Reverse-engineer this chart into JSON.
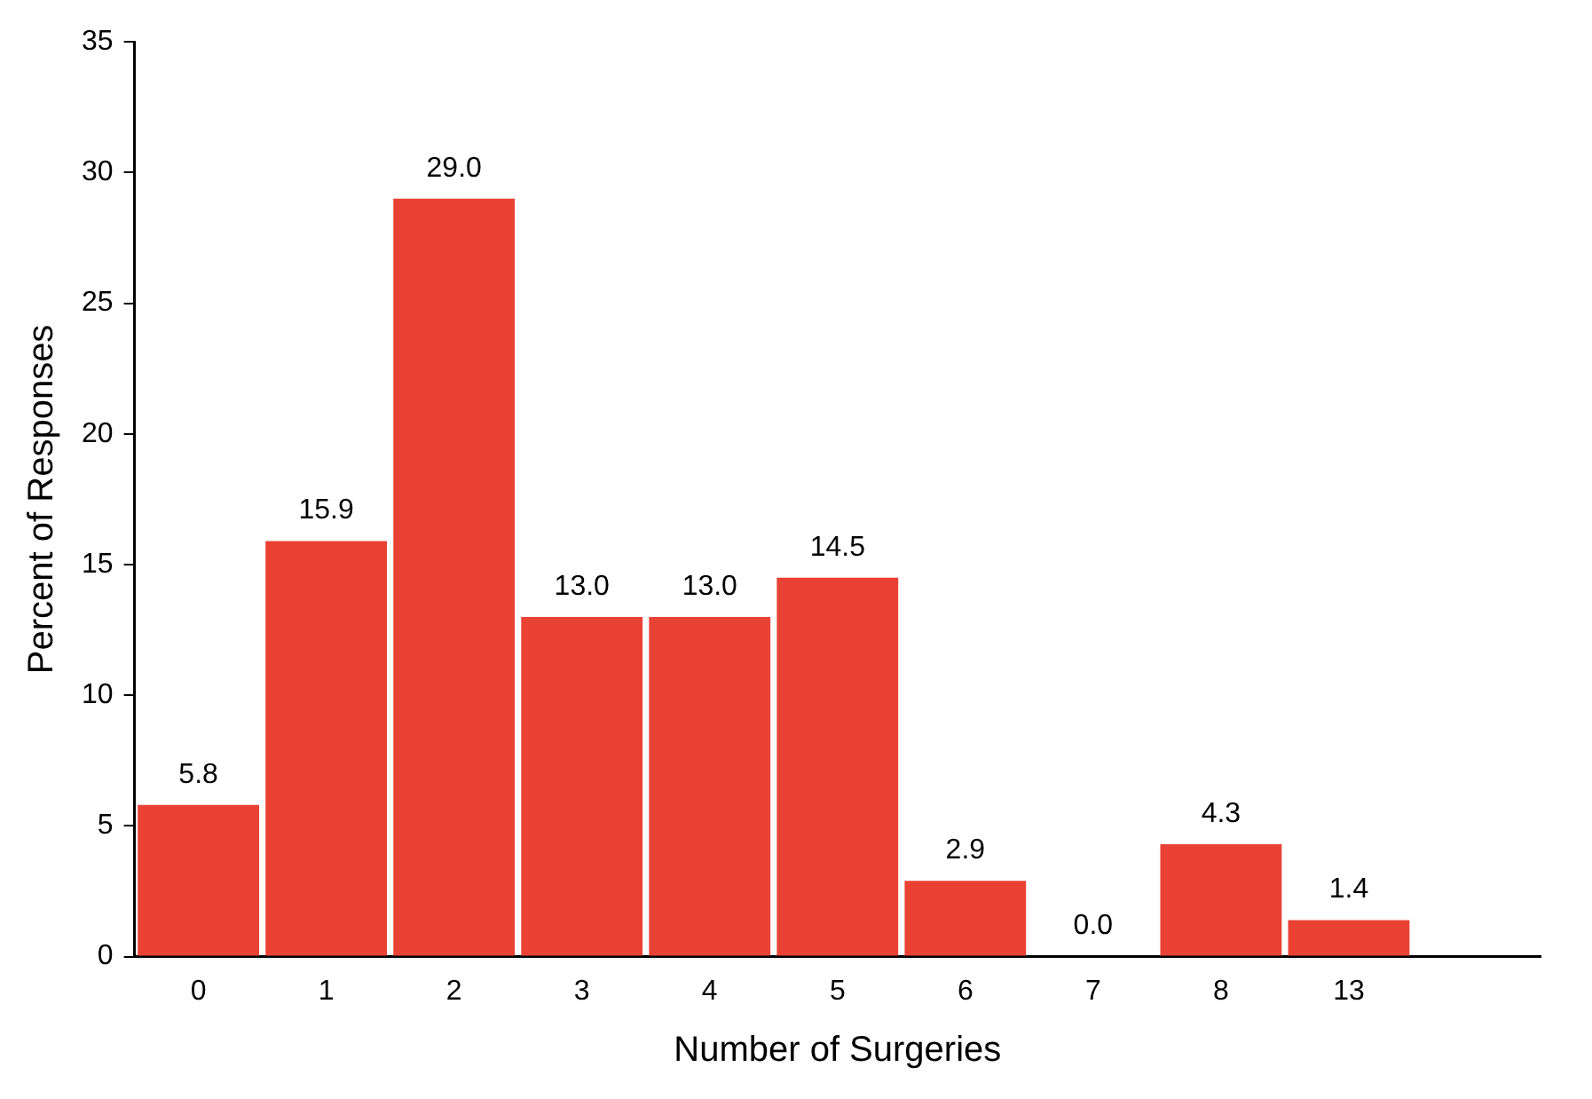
{
  "chart_data": {
    "type": "bar",
    "xlabel": "Number of Surgeries",
    "ylabel": "Percent of Responses",
    "categories": [
      "0",
      "1",
      "2",
      "3",
      "4",
      "5",
      "6",
      "7",
      "8",
      "13",
      null
    ],
    "values": [
      5.8,
      15.9,
      29.0,
      13.0,
      13.0,
      14.5,
      2.9,
      0.0,
      4.3,
      1.4,
      null
    ],
    "value_labels": [
      "5.8",
      "15.9",
      "29.0",
      "13.0",
      "13.0",
      "14.5",
      "2.9",
      "0.0",
      "4.3",
      "1.4",
      null
    ],
    "color": "#e94235",
    "ylim": [
      0,
      35
    ],
    "yticks": [
      0,
      5,
      10,
      15,
      20,
      25,
      30,
      35
    ],
    "grid": false,
    "legend": false
  }
}
